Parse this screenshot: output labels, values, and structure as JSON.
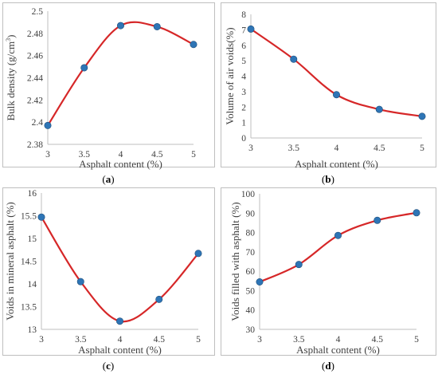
{
  "chart_data": [
    {
      "type": "line",
      "panel_label": "a",
      "xlabel": "Asphalt content (%)",
      "ylabel": "Bulk density (g/cm³)",
      "ylabel_main": "Bulk density (g/cm",
      "ylabel_sup": "3",
      "ylabel_end": ")",
      "x": [
        3,
        3.5,
        4,
        4.5,
        5
      ],
      "values": [
        2.397,
        2.449,
        2.487,
        2.486,
        2.47
      ],
      "xlim": [
        3,
        5
      ],
      "ylim": [
        2.38,
        2.5
      ],
      "xticks": [
        3,
        3.5,
        4,
        4.5,
        5
      ],
      "yticks": [
        2.38,
        2.4,
        2.42,
        2.44,
        2.46,
        2.48,
        2.5
      ],
      "ytick_labels": [
        "2.38",
        "2.4",
        "2.42",
        "2.44",
        "2.46",
        "2.48",
        "2.5"
      ],
      "grid": false,
      "line_color": "#d62728",
      "marker_color": "#2e75b6"
    },
    {
      "type": "line",
      "panel_label": "b",
      "xlabel": "Asphalt content (%)",
      "ylabel": "Volume of air voids(%)",
      "x": [
        3,
        3.5,
        4,
        4.5,
        5
      ],
      "values": [
        7.05,
        5.1,
        2.8,
        1.85,
        1.4
      ],
      "xlim": [
        3,
        5
      ],
      "ylim": [
        0,
        8
      ],
      "xticks": [
        3,
        3.5,
        4,
        4.5,
        5
      ],
      "yticks": [
        0,
        1,
        2,
        3,
        4,
        5,
        6,
        7,
        8
      ],
      "ytick_labels": [
        "0",
        "1",
        "2",
        "3",
        "4",
        "5",
        "6",
        "7",
        "8"
      ],
      "grid": false,
      "line_color": "#d62728",
      "marker_color": "#2e75b6"
    },
    {
      "type": "line",
      "panel_label": "c",
      "xlabel": "Asphalt content (%)",
      "ylabel": "Voids in mineral asphalt (%)",
      "x": [
        3,
        3.5,
        4,
        4.5,
        5
      ],
      "values": [
        15.47,
        14.05,
        13.18,
        13.66,
        14.67
      ],
      "xlim": [
        3,
        5
      ],
      "ylim": [
        13,
        16
      ],
      "xticks": [
        3,
        3.5,
        4,
        4.5,
        5
      ],
      "yticks": [
        13,
        13.5,
        14,
        14.5,
        15,
        15.5,
        16
      ],
      "ytick_labels": [
        "13",
        "13.5",
        "14",
        "14.5",
        "15",
        "15.5",
        "16"
      ],
      "grid": false,
      "line_color": "#d62728",
      "marker_color": "#2e75b6"
    },
    {
      "type": "line",
      "panel_label": "d",
      "xlabel": "Asphalt content (%)",
      "ylabel": "Voids filled with asphalt (%)",
      "x": [
        3,
        3.5,
        4,
        4.5,
        5
      ],
      "values": [
        54.5,
        63.5,
        78.5,
        86.3,
        90.2
      ],
      "xlim": [
        3,
        5
      ],
      "ylim": [
        30,
        100
      ],
      "xticks": [
        3,
        3.5,
        4,
        4.5,
        5
      ],
      "yticks": [
        30,
        40,
        50,
        60,
        70,
        80,
        90,
        100
      ],
      "ytick_labels": [
        "30",
        "40",
        "50",
        "60",
        "70",
        "80",
        "90",
        "100"
      ],
      "grid": false,
      "line_color": "#d62728",
      "marker_color": "#2e75b6"
    }
  ]
}
